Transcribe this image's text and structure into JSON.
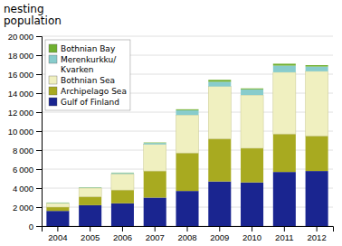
{
  "chart_data": {
    "type": "bar",
    "stacked": true,
    "ylabel": "nesting\npopulation",
    "categories": [
      "2004",
      "2005",
      "2006",
      "2007",
      "2008",
      "2009",
      "2010",
      "2011",
      "2012"
    ],
    "series": [
      {
        "name": "Gulf of Finland",
        "color": "#1a2590",
        "values": [
          1600,
          2200,
          2400,
          3000,
          3700,
          4700,
          4600,
          5700,
          5800
        ]
      },
      {
        "name": "Archipelago Sea",
        "color": "#a8aa20",
        "values": [
          400,
          900,
          1400,
          2800,
          4000,
          4500,
          3600,
          4000,
          3700
        ]
      },
      {
        "name": "Bothnian Sea",
        "color": "#f0f0c0",
        "values": [
          400,
          900,
          1700,
          2800,
          4000,
          5500,
          5600,
          6500,
          6800
        ]
      },
      {
        "name": "Merenkurkku/\nKvarken",
        "color": "#88cccc",
        "values": [
          50,
          50,
          100,
          150,
          500,
          500,
          600,
          700,
          500
        ]
      },
      {
        "name": "Bothnian Bay",
        "color": "#70b030",
        "values": [
          30,
          30,
          30,
          50,
          100,
          200,
          100,
          200,
          150
        ]
      }
    ],
    "ylim": [
      0,
      20000
    ],
    "yticks": [
      0,
      {
        "value": 2000,
        "label": "2 000"
      },
      {
        "value": 4000,
        "label": "4 000"
      },
      {
        "value": 6000,
        "label": "6 000"
      },
      {
        "value": 8000,
        "label": "8 000"
      },
      {
        "value": 10000,
        "label": "10 000"
      },
      {
        "value": 12000,
        "label": "12 000"
      },
      {
        "value": 14000,
        "label": "14 000"
      },
      {
        "value": 16000,
        "label": "16 000"
      },
      {
        "value": 18000,
        "label": "18 000"
      },
      {
        "value": 20000,
        "label": "20 000"
      }
    ],
    "grid": true,
    "legend": "top-left"
  }
}
